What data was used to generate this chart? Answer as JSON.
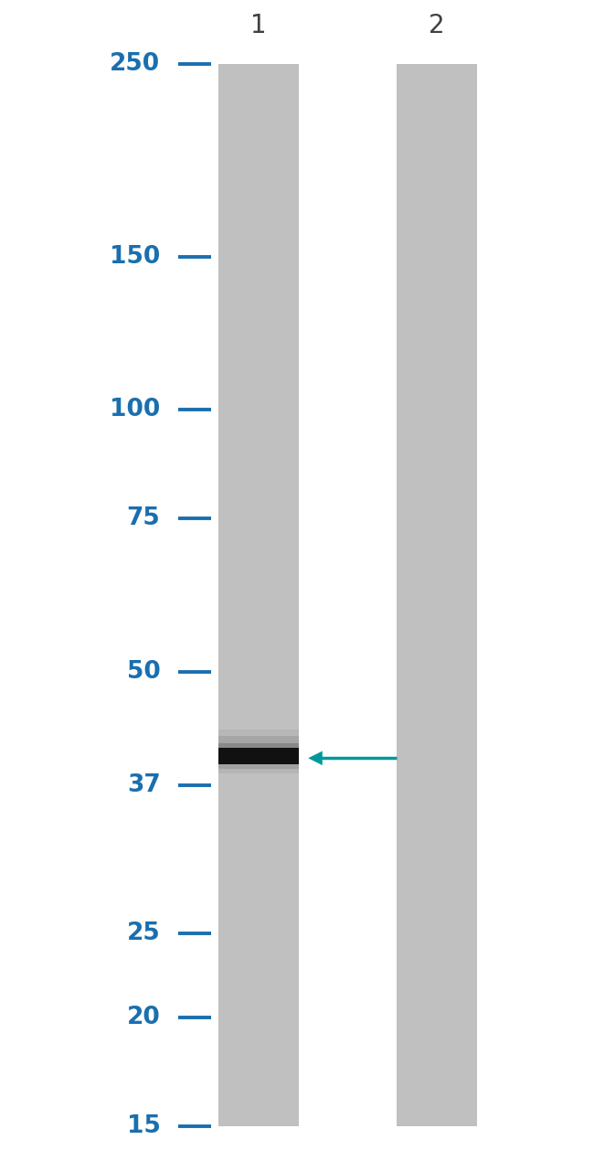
{
  "background_color": "#ffffff",
  "gel_color": "#c0c0c0",
  "lane_labels": [
    "1",
    "2"
  ],
  "mw_markers": [
    250,
    150,
    100,
    75,
    50,
    37,
    25,
    20,
    15
  ],
  "mw_label_color": "#1a6faf",
  "band_color": "#1a1a1a",
  "arrow_color": "#009999",
  "label_fontsize": 20,
  "marker_fontsize": 19,
  "figsize": [
    6.5,
    12.7
  ],
  "dpi": 100
}
